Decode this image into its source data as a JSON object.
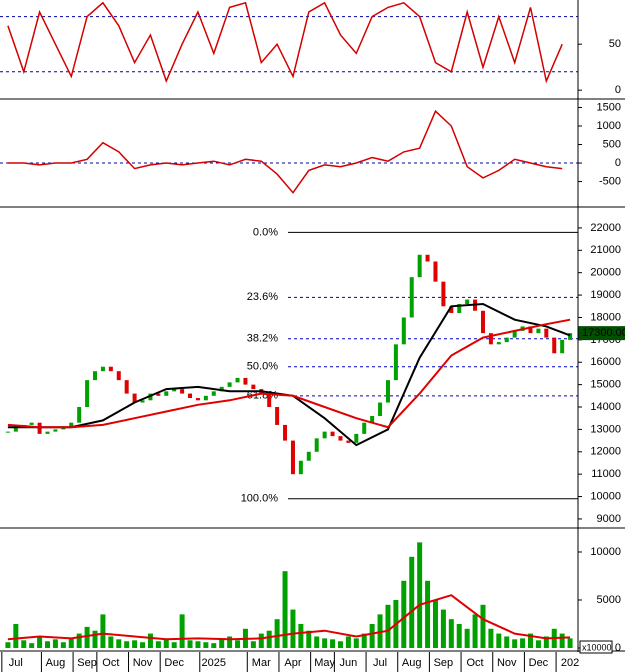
{
  "chart_data": [
    {
      "type": "line",
      "ylim": [
        -8.5,
        98
      ],
      "yticks": [
        0,
        50
      ],
      "levels": [
        20,
        80
      ],
      "x": [
        0,
        2,
        4,
        6,
        8,
        10,
        12,
        14,
        16,
        18,
        20,
        22,
        24,
        26,
        28,
        30,
        32,
        34,
        36,
        38,
        40,
        42,
        44,
        46,
        48,
        50,
        52,
        54,
        56,
        58,
        60,
        62,
        64,
        66,
        68,
        70
      ],
      "series": [
        {
          "color": "#d40000",
          "values": [
            70,
            20,
            85,
            50,
            15,
            80,
            95,
            70,
            30,
            60,
            10,
            50,
            85,
            40,
            90,
            95,
            30,
            50,
            15,
            85,
            95,
            60,
            40,
            80,
            90,
            95,
            80,
            30,
            20,
            85,
            25,
            80,
            30,
            90,
            10,
            50
          ]
        }
      ]
    },
    {
      "type": "line",
      "ylim": [
        -1160,
        1675
      ],
      "yticks": [
        -500,
        0,
        500,
        1000,
        1500
      ],
      "levels": [
        0
      ],
      "x": [
        0,
        2,
        4,
        6,
        8,
        10,
        12,
        14,
        16,
        18,
        20,
        22,
        24,
        26,
        28,
        30,
        32,
        34,
        36,
        38,
        40,
        42,
        44,
        46,
        48,
        50,
        52,
        54,
        56,
        58,
        60,
        62,
        64,
        66,
        68,
        70
      ],
      "series": [
        {
          "color": "#d40000",
          "values": [
            0,
            0,
            -50,
            0,
            0,
            100,
            550,
            300,
            -150,
            -50,
            0,
            -50,
            0,
            50,
            -50,
            100,
            50,
            -300,
            -800,
            -200,
            -50,
            -100,
            0,
            150,
            50,
            300,
            400,
            1400,
            1000,
            -100,
            -400,
            -200,
            100,
            0,
            -100,
            -150
          ]
        }
      ]
    },
    {
      "type": "candlestick",
      "ylim": [
        8640,
        22890
      ],
      "yticks": [
        9000,
        10000,
        11000,
        12000,
        13000,
        14000,
        15000,
        16000,
        17000,
        18000,
        19000,
        20000,
        21000,
        22000
      ],
      "up_color": "#00a000",
      "down_color": "#e00000",
      "close": [
        12900,
        13100,
        13200,
        13300,
        12800,
        12900,
        13000,
        13100,
        13300,
        14000,
        15200,
        15600,
        15800,
        15600,
        15200,
        14600,
        14200,
        14300,
        14600,
        14500,
        14700,
        14800,
        14600,
        14400,
        14300,
        14500,
        14700,
        14900,
        15100,
        15300,
        15000,
        14800,
        14600,
        14000,
        13200,
        12500,
        11000,
        11600,
        12000,
        12600,
        12900,
        12700,
        12500,
        12400,
        12800,
        13300,
        13600,
        14200,
        15200,
        16800,
        18000,
        19800,
        20800,
        20500,
        19600,
        18500,
        18200,
        18600,
        18800,
        18300,
        17300,
        16800,
        16900,
        17100,
        17400,
        17600,
        17300,
        17500,
        17100,
        16400,
        17000,
        17300
      ],
      "series": [
        {
          "color": "#000000",
          "x": [
            0,
            4,
            8,
            12,
            16,
            20,
            24,
            28,
            32,
            36,
            40,
            44,
            48,
            52,
            56,
            60,
            64,
            68,
            71
          ],
          "values": [
            13100,
            13100,
            13100,
            13400,
            14200,
            14800,
            14900,
            14700,
            14700,
            14500,
            13500,
            12300,
            13000,
            16200,
            18500,
            18600,
            17900,
            17600,
            17200
          ]
        },
        {
          "color": "#e00000",
          "x": [
            0,
            4,
            8,
            12,
            16,
            20,
            24,
            28,
            32,
            36,
            40,
            44,
            48,
            52,
            56,
            60,
            64,
            68,
            71
          ],
          "values": [
            13200,
            13100,
            13100,
            13200,
            13500,
            13800,
            14100,
            14300,
            14600,
            14500,
            14000,
            13500,
            13100,
            14600,
            16300,
            17100,
            17400,
            17700,
            17900
          ]
        }
      ],
      "fib_levels": [
        {
          "value": 21800,
          "label": "0.0%"
        },
        {
          "value": 18900,
          "label": "23.6%"
        },
        {
          "value": 17050,
          "label": "38.2%"
        },
        {
          "value": 15800,
          "label": "50.0%"
        },
        {
          "value": 14500,
          "label": "61.8%"
        },
        {
          "value": 9900,
          "label": "100.0%"
        }
      ],
      "last_label": "17300.00"
    },
    {
      "type": "bar",
      "ylim": [
        -210,
        12290
      ],
      "yticks": [
        0,
        5000,
        10000
      ],
      "color": "#00a000",
      "unit": "x10000",
      "values": [
        600,
        2500,
        800,
        500,
        1200,
        700,
        900,
        600,
        1000,
        1500,
        2200,
        1800,
        3500,
        1200,
        900,
        700,
        800,
        600,
        1500,
        700,
        900,
        600,
        3500,
        800,
        700,
        600,
        500,
        900,
        1200,
        800,
        2000,
        700,
        1500,
        1800,
        3000,
        8000,
        4000,
        2500,
        1800,
        1200,
        1000,
        900,
        700,
        1200,
        1000,
        1500,
        2500,
        3500,
        4500,
        5000,
        7000,
        9500,
        11000,
        7000,
        5000,
        4000,
        3000,
        2500,
        2000,
        3500,
        4500,
        2000,
        1500,
        1200,
        900,
        1000,
        1500,
        800,
        1200,
        2000,
        1500,
        1000
      ],
      "series": [
        {
          "color": "#e00000",
          "x": [
            0,
            4,
            8,
            12,
            16,
            20,
            24,
            28,
            32,
            36,
            40,
            44,
            48,
            52,
            56,
            60,
            64,
            68,
            71
          ],
          "values": [
            900,
            1200,
            1000,
            1500,
            1200,
            900,
            1000,
            900,
            1000,
            1500,
            1800,
            1200,
            1800,
            4500,
            5500,
            3000,
            1500,
            1000,
            1100
          ]
        }
      ]
    }
  ],
  "x_axis": {
    "xlim": [
      -1,
      72
    ],
    "xticks": [
      {
        "value": 1,
        "label": "Jul"
      },
      {
        "value": 6,
        "label": "Aug"
      },
      {
        "value": 10,
        "label": "Sep"
      },
      {
        "value": 13,
        "label": "Oct"
      },
      {
        "value": 17,
        "label": "Nov"
      },
      {
        "value": 21,
        "label": "Dec"
      },
      {
        "value": 26,
        "label": "2025"
      },
      {
        "value": 32,
        "label": "Mar"
      },
      {
        "value": 36,
        "label": "Apr"
      },
      {
        "value": 40,
        "label": "May"
      },
      {
        "value": 43,
        "label": "Jun"
      },
      {
        "value": 47,
        "label": "Jul"
      },
      {
        "value": 51,
        "label": "Aug"
      },
      {
        "value": 55,
        "label": "Sep"
      },
      {
        "value": 59,
        "label": "Oct"
      },
      {
        "value": 63,
        "label": "Nov"
      },
      {
        "value": 67,
        "label": "Dec"
      },
      {
        "value": 71,
        "label": "202"
      }
    ]
  }
}
